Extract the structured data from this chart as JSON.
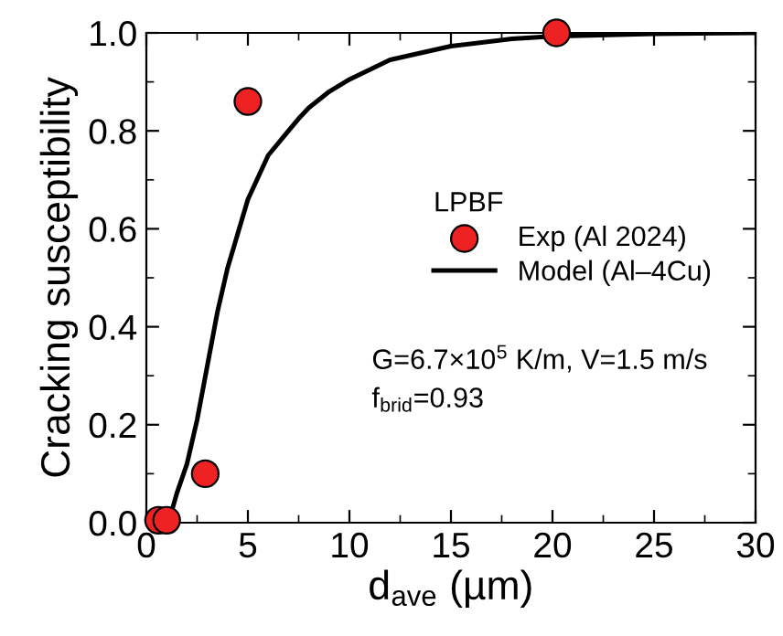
{
  "chart_data": {
    "type": "scatter",
    "xlabel": "d$_{ave}$ (µm)",
    "ylabel": "Cracking susceptibility",
    "legend_title": "LPBF",
    "series": [
      {
        "name": "Exp (Al 2024)",
        "color": "#ee2222",
        "marker": "circle",
        "x": [
          0.6,
          1.0,
          2.9,
          5.0,
          20.2
        ],
        "values": [
          0.005,
          0.005,
          0.1,
          0.86,
          1.0
        ]
      },
      {
        "name": "Model (Al–4Cu)",
        "type": "line",
        "color": "#000000",
        "line_style": "solid",
        "x": [
          1.0,
          1.2,
          1.5,
          2.0,
          2.5,
          3.0,
          3.5,
          4.0,
          4.5,
          5.0,
          6.0,
          7.0,
          7.5,
          8.0,
          9.0,
          10.0,
          12.0,
          15.0,
          18.0,
          20.0,
          25.0,
          30.0
        ],
        "values": [
          0.0,
          0.016,
          0.06,
          0.12,
          0.21,
          0.32,
          0.43,
          0.52,
          0.59,
          0.66,
          0.75,
          0.8,
          0.825,
          0.847,
          0.88,
          0.905,
          0.945,
          0.973,
          0.988,
          0.993,
          0.998,
          1.0
        ]
      }
    ],
    "annotations": [
      "G=6.7×10$^{5}$ K/m, V=1.5 m/s",
      "f$_{brid}$=0.93"
    ],
    "xlim": [
      0,
      30
    ],
    "ylim": [
      0,
      1.0
    ],
    "xticks": [
      0,
      5,
      10,
      15,
      20,
      25,
      30
    ],
    "yticks": [
      {
        "value": 0,
        "label": "0.0"
      },
      {
        "value": 0.2,
        "label": "0.2"
      },
      {
        "value": 0.4,
        "label": "0.4"
      },
      {
        "value": 0.6,
        "label": "0.6"
      },
      {
        "value": 0.8,
        "label": "0.8"
      },
      {
        "value": 1.0,
        "label": "1.0"
      }
    ],
    "grid": false,
    "legend": "right"
  }
}
